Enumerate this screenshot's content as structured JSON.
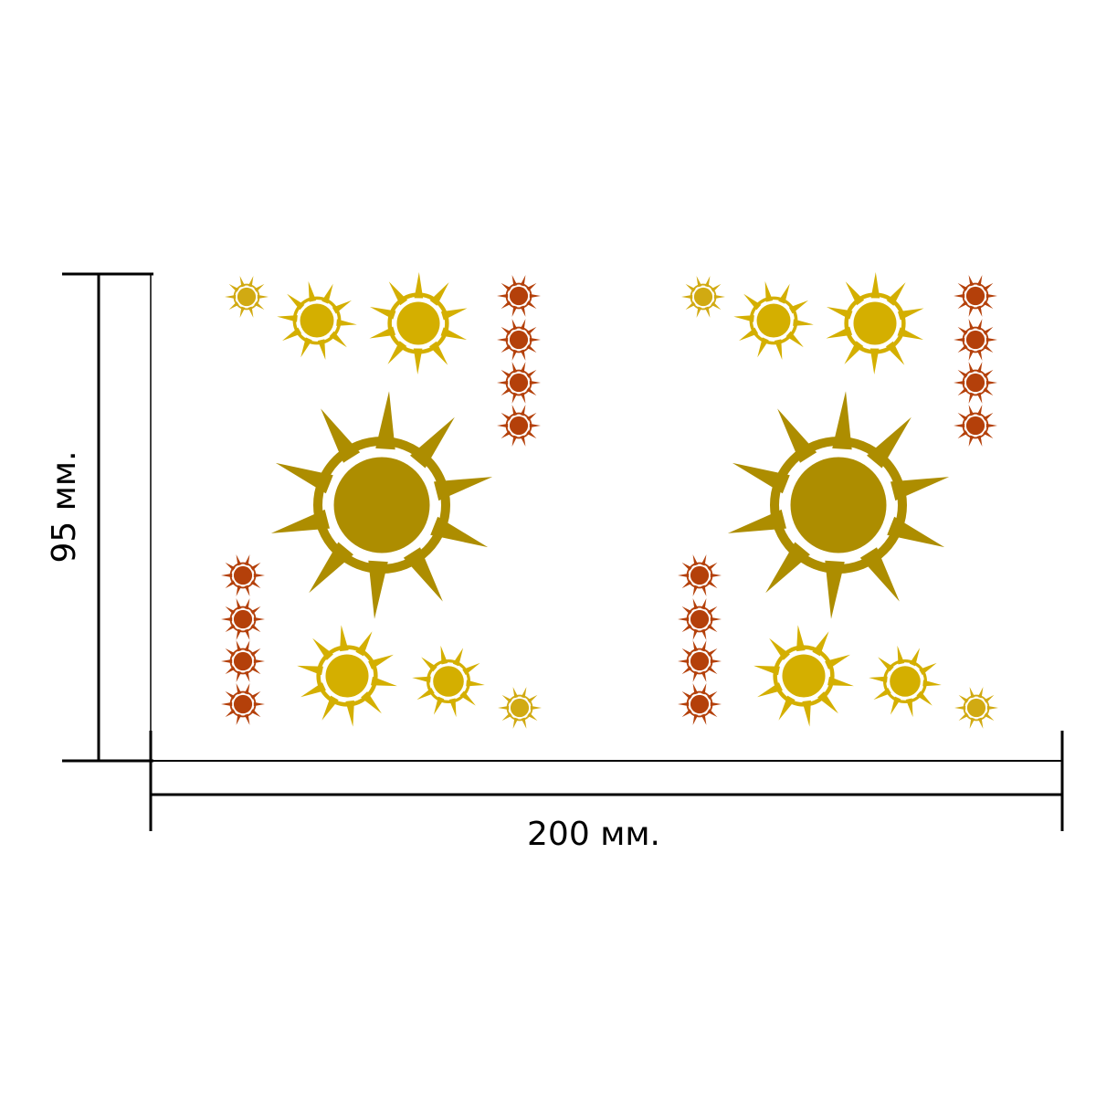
{
  "dimensions": {
    "height_label": "95 мм.",
    "width_label": "200 мм."
  },
  "pattern": {
    "repeat_count": 2,
    "motif": "sun",
    "sun_sizes": [
      "large",
      "medium",
      "small",
      "tiny"
    ]
  },
  "colors": {
    "large_sun": "#AD8D00",
    "medium_sun": "#D4AF00",
    "small_sun": "#D4AF00",
    "tiny_sun": "#D1AA12",
    "red_sun": "#B4400A",
    "line": "#000000",
    "background": "#FFFFFF"
  }
}
